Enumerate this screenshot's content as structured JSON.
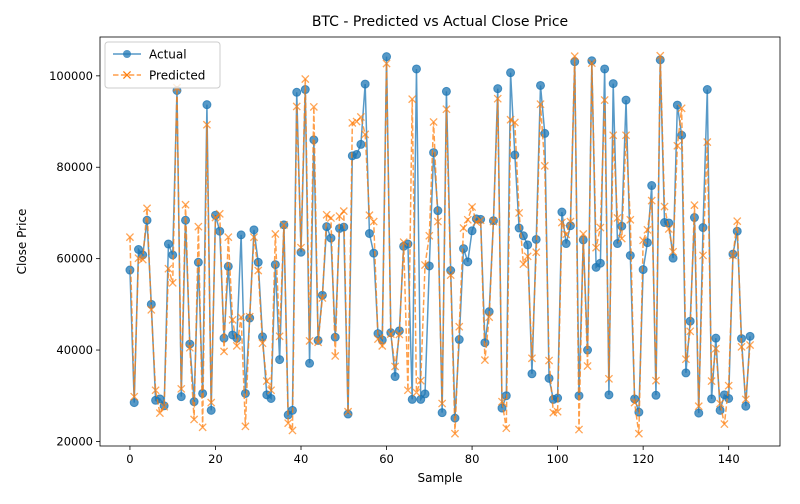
{
  "chart_data": {
    "type": "line",
    "title": "BTC - Predicted vs Actual Close Price",
    "xlabel": "Sample",
    "ylabel": "Close Price",
    "xlim": [
      -7,
      152
    ],
    "ylim": [
      19000,
      108500
    ],
    "x_ticks": [
      0,
      20,
      40,
      60,
      80,
      100,
      120,
      140
    ],
    "y_ticks": [
      20000,
      40000,
      60000,
      80000,
      100000
    ],
    "x_tick_labels": [
      "0",
      "20",
      "40",
      "60",
      "80",
      "100",
      "120",
      "140"
    ],
    "y_tick_labels": [
      "20000",
      "40000",
      "60000",
      "80000",
      "100000"
    ],
    "legend": {
      "position": "top-left"
    },
    "x": [
      0,
      1,
      2,
      3,
      4,
      5,
      6,
      7,
      8,
      9,
      10,
      11,
      12,
      13,
      14,
      15,
      16,
      17,
      18,
      19,
      20,
      21,
      22,
      23,
      24,
      25,
      26,
      27,
      28,
      29,
      30,
      31,
      32,
      33,
      34,
      35,
      36,
      37,
      38,
      39,
      40,
      41,
      42,
      43,
      44,
      45,
      46,
      47,
      48,
      49,
      50,
      51,
      52,
      53,
      54,
      55,
      56,
      57,
      58,
      59,
      60,
      61,
      62,
      63,
      64,
      65,
      66,
      67,
      68,
      69,
      70,
      71,
      72,
      73,
      74,
      75,
      76,
      77,
      78,
      79,
      80,
      81,
      82,
      83,
      84,
      85,
      86,
      87,
      88,
      89,
      90,
      91,
      92,
      93,
      94,
      95,
      96,
      97,
      98,
      99,
      100,
      101,
      102,
      103,
      104,
      105,
      106,
      107,
      108,
      109,
      110,
      111,
      112,
      113,
      114,
      115,
      116,
      117,
      118,
      119,
      120,
      121,
      122,
      123,
      124,
      125,
      126,
      127,
      128,
      129,
      130,
      131,
      132,
      133,
      134,
      135,
      136,
      137,
      138,
      139,
      140,
      141,
      142,
      143,
      144,
      145
    ],
    "series": [
      {
        "name": "Actual",
        "color": "#1f77b4",
        "marker": "circle",
        "linestyle": "solid",
        "values": [
          57500,
          28500,
          62000,
          60800,
          68400,
          50000,
          29000,
          29300,
          27800,
          63200,
          60800,
          96800,
          29800,
          68400,
          41300,
          28700,
          59200,
          30500,
          93700,
          26800,
          69500,
          66000,
          42600,
          58300,
          43300,
          42600,
          65200,
          30500,
          47000,
          66300,
          59200,
          42900,
          30200,
          29400,
          58700,
          37900,
          67400,
          25800,
          26800,
          96400,
          61400,
          97000,
          37100,
          86000,
          42100,
          52000,
          67000,
          64500,
          42800,
          66600,
          66900,
          26000,
          82500,
          82800,
          85000,
          98200,
          65500,
          61200,
          43600,
          42200,
          104200,
          43800,
          34200,
          44200,
          62700,
          63200,
          29200,
          101500,
          29200,
          30400,
          58400,
          83200,
          70500,
          26300,
          96600,
          57400,
          25100,
          42300,
          62200,
          59300,
          66100,
          68700,
          68600,
          41600,
          48400,
          68300,
          97200,
          27300,
          30000,
          100700,
          82700,
          66700,
          65000,
          63000,
          34800,
          64200,
          97900,
          87400,
          33800,
          29200,
          29500,
          70200,
          63300,
          67200,
          103100,
          30000,
          64100,
          40000,
          103300,
          58100,
          59000,
          101500,
          30200,
          98300,
          63300,
          67100,
          94700,
          60700,
          29300,
          26400,
          57600,
          63500,
          76000,
          30100,
          103500,
          67900,
          67800,
          60100,
          93600,
          87000,
          35000,
          46300,
          69000,
          26200,
          66800,
          97000,
          29300,
          42600,
          26800,
          30200,
          29400,
          61000,
          66000,
          42500,
          27700,
          43000
        ]
      },
      {
        "name": "Predicted",
        "color": "#ff7f0e",
        "marker": "x",
        "linestyle": "dashed",
        "values": [
          64700,
          29800,
          60100,
          59800,
          71000,
          48800,
          31200,
          26200,
          27600,
          57800,
          54700,
          97400,
          31500,
          71800,
          40500,
          24800,
          67000,
          23100,
          89300,
          28500,
          69000,
          69800,
          39700,
          64700,
          46600,
          40900,
          47200,
          23300,
          47300,
          64700,
          57400,
          41500,
          33200,
          31200,
          65400,
          43000,
          67400,
          24000,
          22400,
          93300,
          62400,
          99300,
          42000,
          93200,
          41700,
          51400,
          69600,
          68900,
          38700,
          69300,
          70400,
          26500,
          89700,
          90000,
          91000,
          87200,
          69500,
          68100,
          42400,
          40900,
          102700,
          43500,
          36400,
          43400,
          63600,
          31200,
          94900,
          30700,
          33300,
          58600,
          65000,
          89900,
          68100,
          28300,
          92700,
          56400,
          21700,
          45100,
          66700,
          68500,
          71300,
          68000,
          68400,
          37800,
          47200,
          68100,
          95000,
          28700,
          22900,
          90400,
          89800,
          70000,
          58800,
          60500,
          38200,
          61400,
          93800,
          80300,
          37700,
          26300,
          26500,
          67900,
          65300,
          68100,
          104300,
          22600,
          65400,
          36500,
          102800,
          62400,
          66800,
          94700,
          33700,
          87000,
          68900,
          64400,
          87000,
          68500,
          28500,
          21700,
          64000,
          66300,
          72700,
          33300,
          104400,
          71400,
          66500,
          61500,
          84700,
          92900,
          38000,
          44100,
          71700,
          27700,
          60700,
          85500,
          33200,
          40300,
          28300,
          23800,
          32200,
          60700,
          68200,
          40700,
          29200,
          41100
        ]
      }
    ]
  }
}
